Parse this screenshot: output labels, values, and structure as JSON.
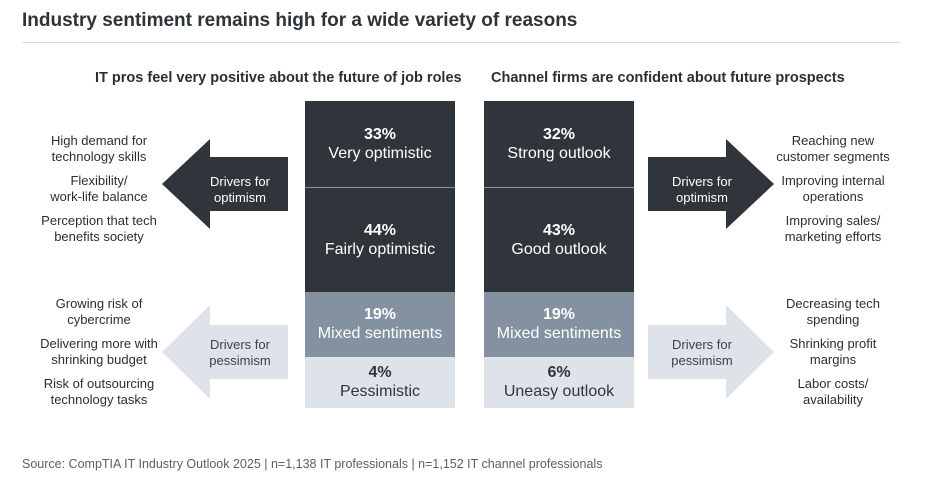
{
  "title": "Industry sentiment remains high for a wide variety of reasons",
  "left": {
    "heading": "IT pros feel very positive about the future of job roles",
    "segments": [
      {
        "pct": "33%",
        "label": "Very optimistic",
        "value": 33
      },
      {
        "pct": "44%",
        "label": "Fairly optimistic",
        "value": 44
      },
      {
        "pct": "19%",
        "label": "Mixed sentiments",
        "value": 19
      },
      {
        "pct": "4%",
        "label": "Pessimistic",
        "value": 4
      }
    ],
    "optimism_arrow": [
      "Drivers for",
      "optimism"
    ],
    "pessimism_arrow": [
      "Drivers for",
      "pessimism"
    ],
    "optimism_drivers": [
      [
        "High demand for",
        "technology skills"
      ],
      [
        "Flexibility/",
        "work-life balance"
      ],
      [
        "Perception that tech",
        "benefits society"
      ]
    ],
    "pessimism_drivers": [
      [
        "Growing risk of",
        "cybercrime"
      ],
      [
        "Delivering more with",
        "shrinking budget"
      ],
      [
        "Risk of outsourcing",
        "technology tasks"
      ]
    ]
  },
  "right": {
    "heading": "Channel firms are confident about future prospects",
    "segments": [
      {
        "pct": "32%",
        "label": "Strong outlook",
        "value": 32
      },
      {
        "pct": "43%",
        "label": "Good outlook",
        "value": 43
      },
      {
        "pct": "19%",
        "label": "Mixed sentiments",
        "value": 19
      },
      {
        "pct": "6%",
        "label": "Uneasy outlook",
        "value": 6
      }
    ],
    "optimism_arrow": [
      "Drivers for",
      "optimism"
    ],
    "pessimism_arrow": [
      "Drivers for",
      "pessimism"
    ],
    "optimism_drivers": [
      [
        "Reaching new",
        "customer segments"
      ],
      [
        "Improving internal",
        "operations"
      ],
      [
        "Improving sales/",
        "marketing efforts"
      ]
    ],
    "pessimism_drivers": [
      [
        "Decreasing tech",
        "spending"
      ],
      [
        "Shrinking profit",
        "margins"
      ],
      [
        "Labor costs/",
        "availability"
      ]
    ]
  },
  "source": "Source: CompTIA IT Industry Outlook 2025 | n=1,138 IT professionals | n=1,152 IT channel professionals",
  "colors": {
    "dark": "#2f353b",
    "mid": "#8391a0",
    "light": "#dde3e9"
  }
}
